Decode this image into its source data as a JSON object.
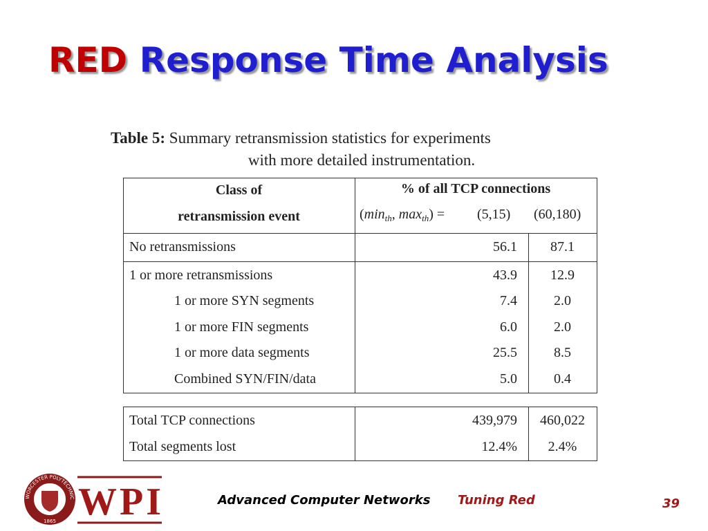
{
  "title": {
    "red": "RED",
    "blue": "Response Time Analysis"
  },
  "caption": {
    "label": "Table 5:",
    "lines": [
      "Summary retransmission statistics for experiments",
      "with more detailed instrumentation."
    ]
  },
  "table": {
    "header": {
      "class": [
        "Class of",
        "retransmission event"
      ],
      "percent": "% of all TCP connections",
      "params": [
        "(",
        "min",
        "th",
        ", ",
        "max",
        "th",
        ") ="
      ],
      "settings": [
        "(5,15)",
        "(60,180)"
      ]
    },
    "groups": [
      {
        "rows": [
          [
            "No retransmissions",
            "56.1",
            "87.1"
          ]
        ]
      },
      {
        "rows": [
          [
            "1 or more retransmissions",
            "43.9",
            "12.9"
          ]
        ],
        "subrows": [
          [
            "1 or more SYN segments",
            "7.4",
            "2.0"
          ],
          [
            "1 or more FIN segments",
            "6.0",
            "2.0"
          ],
          [
            "1 or more data segments",
            "25.5",
            "8.5"
          ],
          [
            "Combined SYN/FIN/data",
            "5.0",
            "0.4"
          ]
        ]
      }
    ],
    "totals": [
      [
        "Total TCP connections",
        "439,979",
        "460,022"
      ],
      [
        "Total segments lost",
        "12.4%",
        "2.4%"
      ]
    ]
  },
  "footer": {
    "logo": {
      "name": "WPI",
      "seal": "WORCESTER POLYTECHNIC INSTITUTE",
      "year": "1865"
    },
    "course": "Advanced Computer Networks",
    "topic": "Tuning Red",
    "page": "39"
  }
}
